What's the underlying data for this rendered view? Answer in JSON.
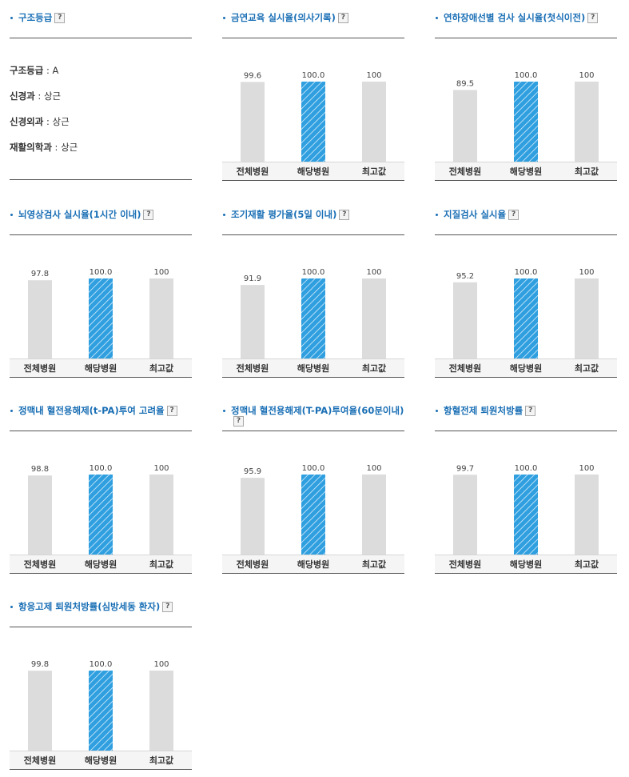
{
  "structure": {
    "title": "구조등급",
    "help": "?",
    "rows": [
      {
        "label": "구조등급",
        "value": "A"
      },
      {
        "label": "신경과",
        "value": "상근"
      },
      {
        "label": "신경외과",
        "value": "상근"
      },
      {
        "label": "재활의학과",
        "value": "상근"
      }
    ]
  },
  "colors": {
    "accent": "#1a6fb5",
    "bar_gray": "#dcdcdc",
    "bar_blue": "#2f9fe0",
    "axis_bg": "#f5f5f5"
  },
  "chart_data": [
    {
      "type": "bar",
      "title": "금연교육 실시율(의사기록)",
      "help": "?",
      "categories": [
        "전체병원",
        "해당병원",
        "최고값"
      ],
      "values": [
        99.6,
        100.0,
        100
      ],
      "value_labels": [
        "99.6",
        "100.0",
        "100"
      ],
      "ylim": [
        0,
        100
      ]
    },
    {
      "type": "bar",
      "title": "연하장애선별 검사 실시율(첫식이전)",
      "help": "?",
      "categories": [
        "전체병원",
        "해당병원",
        "최고값"
      ],
      "values": [
        89.5,
        100.0,
        100
      ],
      "value_labels": [
        "89.5",
        "100.0",
        "100"
      ],
      "ylim": [
        0,
        100
      ]
    },
    {
      "type": "bar",
      "title": "뇌영상검사 실시율(1시간 이내)",
      "help": "?",
      "categories": [
        "전체병원",
        "해당병원",
        "최고값"
      ],
      "values": [
        97.8,
        100.0,
        100
      ],
      "value_labels": [
        "97.8",
        "100.0",
        "100"
      ],
      "ylim": [
        0,
        100
      ]
    },
    {
      "type": "bar",
      "title": "조기재활 평가율(5일 이내)",
      "help": "?",
      "categories": [
        "전체병원",
        "해당병원",
        "최고값"
      ],
      "values": [
        91.9,
        100.0,
        100
      ],
      "value_labels": [
        "91.9",
        "100.0",
        "100"
      ],
      "ylim": [
        0,
        100
      ]
    },
    {
      "type": "bar",
      "title": "지질검사 실시율",
      "help": "?",
      "categories": [
        "전체병원",
        "해당병원",
        "최고값"
      ],
      "values": [
        95.2,
        100.0,
        100
      ],
      "value_labels": [
        "95.2",
        "100.0",
        "100"
      ],
      "ylim": [
        0,
        100
      ]
    },
    {
      "type": "bar",
      "title": "정맥내 혈전용해제(t-PA)투여 고려율",
      "help": "?",
      "categories": [
        "전체병원",
        "해당병원",
        "최고값"
      ],
      "values": [
        98.8,
        100.0,
        100
      ],
      "value_labels": [
        "98.8",
        "100.0",
        "100"
      ],
      "ylim": [
        0,
        100
      ]
    },
    {
      "type": "bar",
      "title": "정맥내 혈전용해제(T-PA)투여율(60분이내)",
      "help": "?",
      "categories": [
        "전체병원",
        "해당병원",
        "최고값"
      ],
      "values": [
        95.9,
        100.0,
        100
      ],
      "value_labels": [
        "95.9",
        "100.0",
        "100"
      ],
      "ylim": [
        0,
        100
      ]
    },
    {
      "type": "bar",
      "title": "항혈전제 퇴원처방률",
      "help": "?",
      "categories": [
        "전체병원",
        "해당병원",
        "최고값"
      ],
      "values": [
        99.7,
        100.0,
        100
      ],
      "value_labels": [
        "99.7",
        "100.0",
        "100"
      ],
      "ylim": [
        0,
        100
      ]
    },
    {
      "type": "bar",
      "title": "항응고제 퇴원처방률(심방세동 환자)",
      "help": "?",
      "categories": [
        "전체병원",
        "해당병원",
        "최고값"
      ],
      "values": [
        99.8,
        100.0,
        100
      ],
      "value_labels": [
        "99.8",
        "100.0",
        "100"
      ],
      "ylim": [
        0,
        100
      ]
    }
  ]
}
